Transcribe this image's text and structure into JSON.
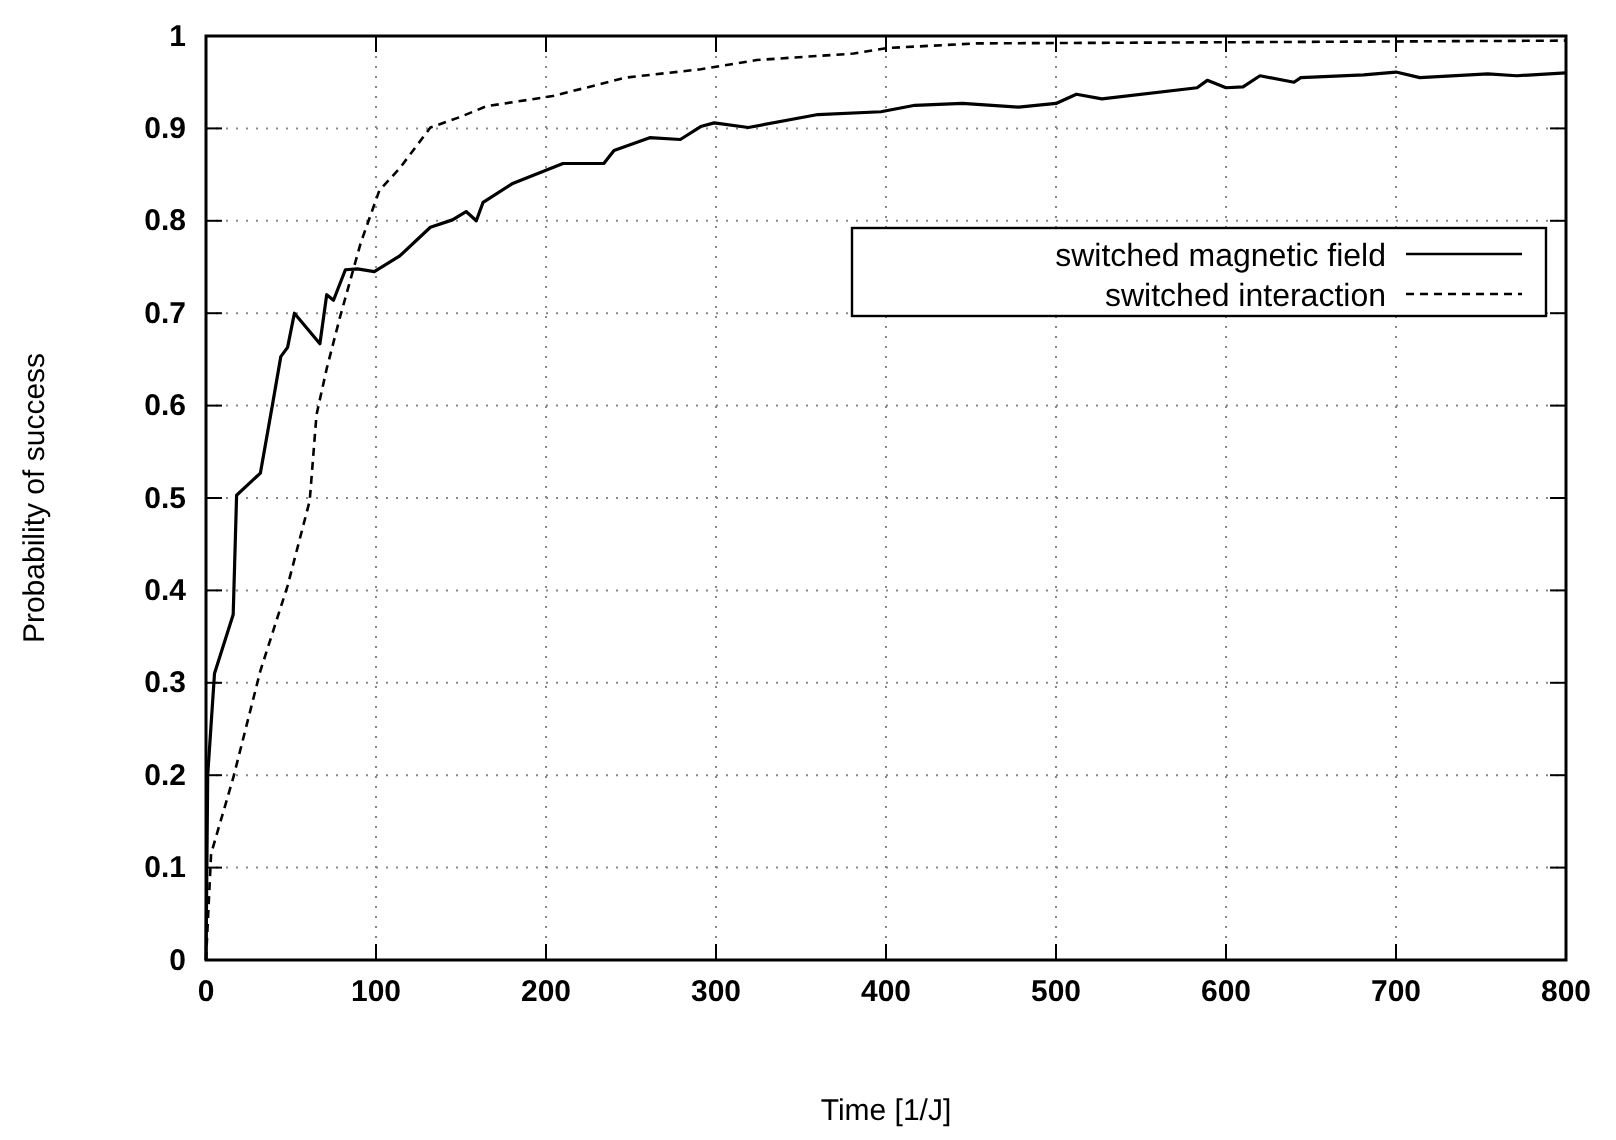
{
  "chart_data": {
    "type": "line",
    "xlabel": "Time [1/J]",
    "ylabel": "Probability of success",
    "xlim": [
      0,
      800
    ],
    "xticks": [
      0,
      100,
      200,
      300,
      400,
      500,
      600,
      700,
      800
    ],
    "ylim": [
      0,
      1
    ],
    "yticks": [
      0,
      0.1,
      0.2,
      0.3,
      0.4,
      0.5,
      0.6,
      0.7,
      0.8,
      0.9,
      1
    ],
    "grid": true,
    "legend": "top right",
    "series": [
      {
        "name": "switched magnetic field",
        "color": "#000000",
        "line_style": "solid",
        "x": [
          0,
          1,
          5,
          16,
          18,
          32,
          39,
          44,
          48,
          52,
          67,
          71,
          75,
          82,
          89,
          99,
          114,
          132,
          145,
          153,
          159,
          163,
          180,
          210,
          234,
          240,
          261,
          279,
          291,
          299,
          319,
          360,
          397,
          417,
          445,
          478,
          500,
          512,
          527,
          583,
          589,
          600,
          610,
          620,
          640,
          644,
          681,
          700,
          714,
          754,
          771,
          800
        ],
        "values": [
          0,
          0.2,
          0.31,
          0.374,
          0.503,
          0.527,
          0.6,
          0.653,
          0.663,
          0.7,
          0.667,
          0.72,
          0.714,
          0.747,
          0.748,
          0.745,
          0.762,
          0.793,
          0.801,
          0.81,
          0.8,
          0.82,
          0.84,
          0.862,
          0.862,
          0.876,
          0.89,
          0.888,
          0.902,
          0.906,
          0.901,
          0.915,
          0.918,
          0.925,
          0.927,
          0.923,
          0.927,
          0.937,
          0.932,
          0.944,
          0.952,
          0.944,
          0.945,
          0.957,
          0.95,
          0.955,
          0.958,
          0.961,
          0.955,
          0.959,
          0.957,
          0.96
        ]
      },
      {
        "name": "switched interaction",
        "color": "#000000",
        "line_style": "dashed",
        "x": [
          0,
          3,
          16,
          32,
          48,
          61,
          65,
          71,
          79,
          91,
          102,
          114,
          132,
          149,
          165,
          204,
          247,
          291,
          324,
          381,
          401,
          453,
          575,
          800
        ],
        "values": [
          0,
          0.115,
          0.197,
          0.313,
          0.405,
          0.497,
          0.59,
          0.64,
          0.697,
          0.776,
          0.833,
          0.857,
          0.901,
          0.912,
          0.924,
          0.935,
          0.955,
          0.964,
          0.974,
          0.981,
          0.987,
          0.992,
          0.993,
          0.995
        ]
      }
    ]
  }
}
